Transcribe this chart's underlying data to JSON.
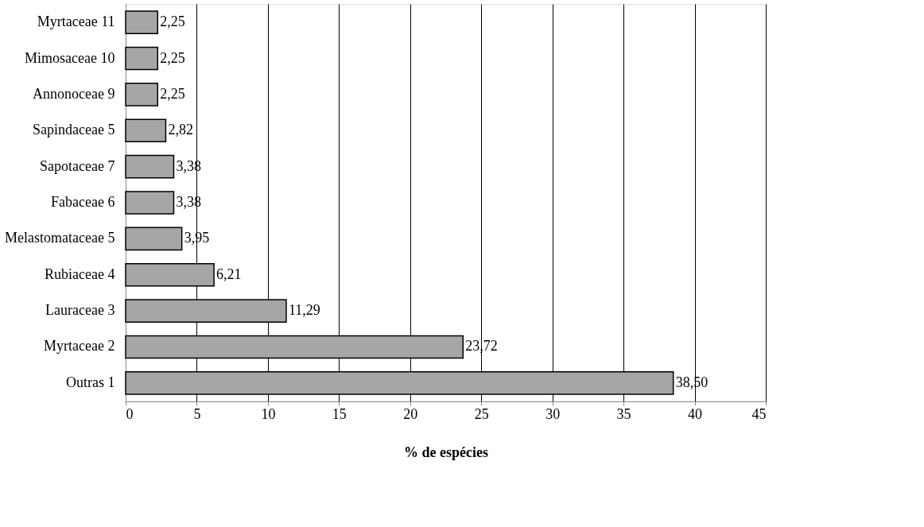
{
  "chart_data": {
    "type": "bar",
    "orientation": "horizontal",
    "xlabel": "% de espécies",
    "categories": [
      "Myrtaceae 11",
      "Mimosaceae 10",
      "Annonoceae 9",
      "Sapindaceae 5",
      "Sapotaceae 7",
      "Fabaceae 6",
      "Melastomataceae 5",
      "Rubiaceae 4",
      "Lauraceae 3",
      "Myrtaceae 2",
      "Outras 1"
    ],
    "values": [
      2.25,
      2.25,
      2.25,
      2.82,
      3.38,
      3.38,
      3.95,
      6.21,
      11.29,
      23.72,
      38.5
    ],
    "value_labels": [
      "2,25",
      "2,25",
      "2,25",
      "2,82",
      "3,38",
      "3,38",
      "3,95",
      "6,21",
      "11,29",
      "23,72",
      "38,50"
    ],
    "color": "#a6a6a6",
    "xlim": [
      0,
      45
    ],
    "xticks": [
      0,
      5,
      10,
      15,
      20,
      25,
      30,
      35,
      40,
      45
    ],
    "grid": "x"
  }
}
